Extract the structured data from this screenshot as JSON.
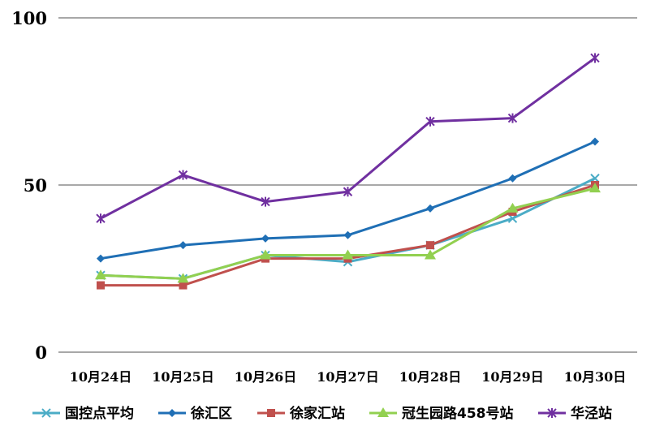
{
  "chart_data": {
    "type": "line",
    "title": "",
    "xlabel": "",
    "ylabel": "",
    "ylim": [
      0,
      100
    ],
    "yticks": [
      0,
      50,
      100
    ],
    "grid": true,
    "legend_position": "bottom",
    "categories": [
      "10月24日",
      "10月25日",
      "10月26日",
      "10月27日",
      "10月28日",
      "10月29日",
      "10月30日"
    ],
    "series": [
      {
        "name": "国控点平均",
        "color": "#4bacc6",
        "marker": "x",
        "values": [
          23,
          22,
          29,
          27,
          32,
          40,
          52
        ]
      },
      {
        "name": "徐汇区",
        "color": "#1f6fb5",
        "marker": "diamond",
        "values": [
          28,
          32,
          34,
          35,
          43,
          52,
          63
        ]
      },
      {
        "name": "徐家汇站",
        "color": "#c0504d",
        "marker": "square",
        "values": [
          20,
          20,
          28,
          28,
          32,
          42,
          50
        ]
      },
      {
        "name": "冠生园路458号站",
        "color": "#92d050",
        "marker": "triangle",
        "values": [
          23,
          22,
          29,
          29,
          29,
          43,
          49
        ]
      },
      {
        "name": "华泾站",
        "color": "#7030a0",
        "marker": "star",
        "values": [
          40,
          53,
          45,
          48,
          69,
          70,
          88
        ]
      }
    ]
  }
}
